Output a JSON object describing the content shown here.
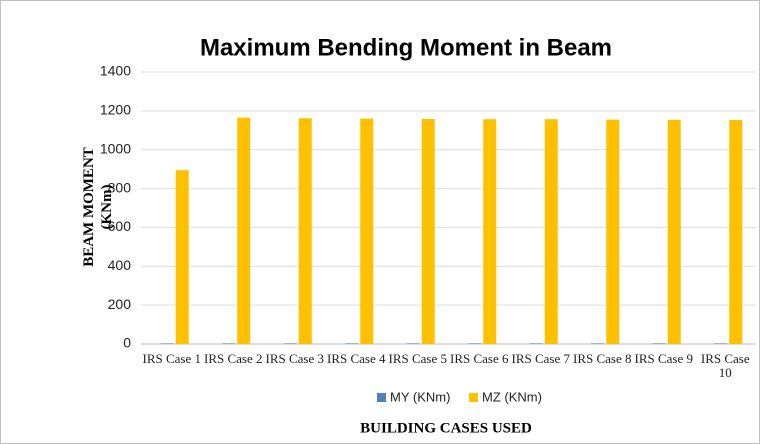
{
  "chart_data": {
    "type": "bar",
    "title": "Maximum Bending Moment in Beam",
    "ylabel": "BEAM MOMENT (KNm)",
    "xlabel": "BUILDING CASES USED",
    "categories": [
      "IRS Case 1",
      "IRS Case 2",
      "IRS Case 3",
      "IRS Case 4",
      "IRS Case 5",
      "IRS Case 6",
      "IRS Case 7",
      "IRS Case 8",
      "IRS Case 9",
      "IRS Case 10"
    ],
    "series": [
      {
        "name": "MY (KNm)",
        "color": "#4f81bd",
        "values": [
          3,
          3,
          3,
          3,
          3,
          3,
          3,
          3,
          3,
          3
        ]
      },
      {
        "name": "MZ (KNm)",
        "color": "#ffc000",
        "values": [
          895,
          1165,
          1162,
          1160,
          1158,
          1157,
          1157,
          1155,
          1154,
          1153
        ]
      }
    ],
    "ylim": [
      0,
      1400
    ],
    "yticks": [
      0,
      200,
      400,
      600,
      800,
      1000,
      1200,
      1400
    ],
    "grid": true,
    "legend": "bottom"
  }
}
